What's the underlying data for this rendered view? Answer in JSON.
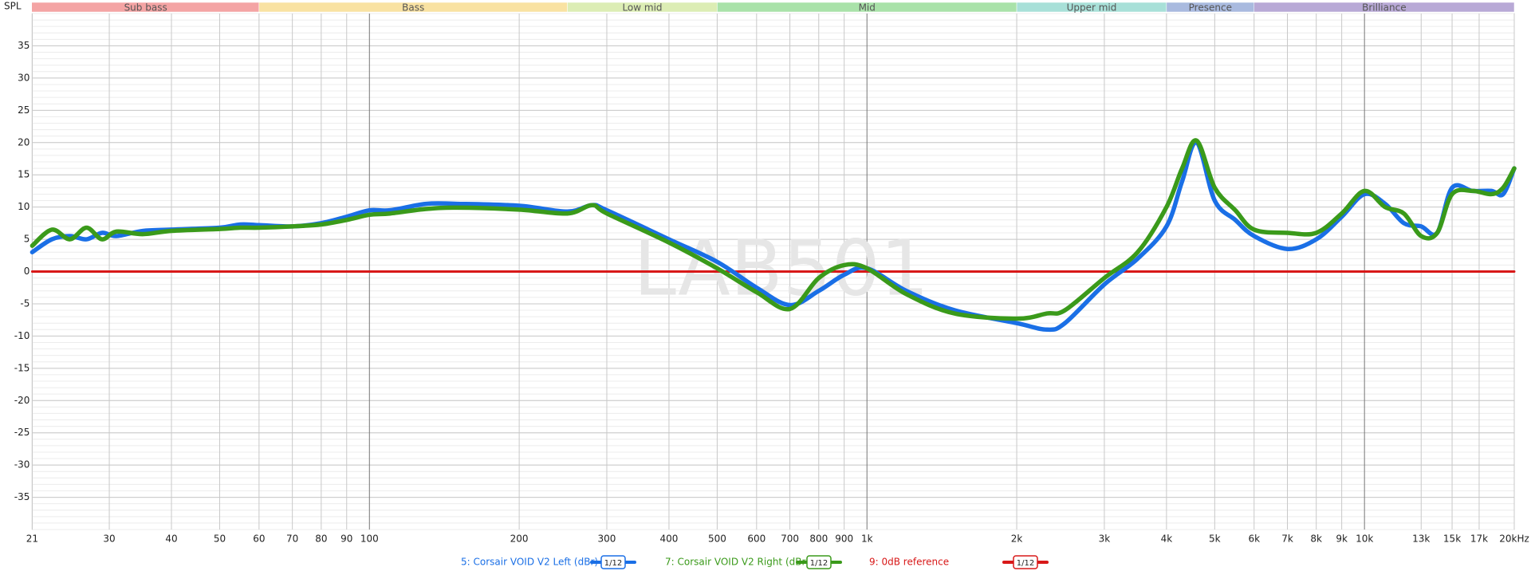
{
  "chart_data": {
    "type": "line",
    "y_axis_label": "SPL",
    "watermark": "LAB501",
    "xscale": "log",
    "xlim": [
      21,
      20000
    ],
    "ylim": [
      -40,
      40
    ],
    "grid": true,
    "xticks": [
      21,
      30,
      40,
      50,
      60,
      70,
      80,
      90,
      100,
      200,
      300,
      400,
      500,
      600,
      700,
      800,
      900,
      {
        "value": 1000,
        "label": "1k"
      },
      {
        "value": 2000,
        "label": "2k"
      },
      {
        "value": 3000,
        "label": "3k"
      },
      {
        "value": 4000,
        "label": "4k"
      },
      {
        "value": 5000,
        "label": "5k"
      },
      {
        "value": 6000,
        "label": "6k"
      },
      {
        "value": 7000,
        "label": "7k"
      },
      {
        "value": 8000,
        "label": "8k"
      },
      {
        "value": 9000,
        "label": "9k"
      },
      {
        "value": 10000,
        "label": "10k"
      },
      {
        "value": 13000,
        "label": "13k"
      },
      {
        "value": 15000,
        "label": "15k"
      },
      {
        "value": 17000,
        "label": "17k"
      },
      {
        "value": 20000,
        "label": "20kHz"
      }
    ],
    "yticks": [
      -35,
      -30,
      -25,
      -20,
      -15,
      -10,
      -5,
      0,
      5,
      10,
      15,
      20,
      25,
      30,
      35
    ],
    "bands": [
      {
        "name": "Sub bass",
        "start": 20,
        "end": 60,
        "color": "#f4a4a4"
      },
      {
        "name": "Bass",
        "start": 60,
        "end": 250,
        "color": "#f9e2a2"
      },
      {
        "name": "Low mid",
        "start": 250,
        "end": 500,
        "color": "#dcedb4"
      },
      {
        "name": "Mid",
        "start": 500,
        "end": 2000,
        "color": "#a9e2a9"
      },
      {
        "name": "Upper mid",
        "start": 2000,
        "end": 4000,
        "color": "#a8e0d8"
      },
      {
        "name": "Presence",
        "start": 4000,
        "end": 6000,
        "color": "#a9badf"
      },
      {
        "name": "Brilliance",
        "start": 6000,
        "end": 20000,
        "color": "#b8a9d6"
      }
    ],
    "x": [
      21,
      23,
      25,
      27,
      29,
      31,
      35,
      40,
      50,
      55,
      60,
      70,
      80,
      90,
      100,
      110,
      130,
      150,
      200,
      250,
      280,
      300,
      400,
      500,
      600,
      700,
      800,
      900,
      1000,
      1200,
      1500,
      2000,
      2300,
      2500,
      3000,
      3500,
      4000,
      4300,
      4600,
      5000,
      5500,
      6000,
      7000,
      8000,
      9000,
      10000,
      11000,
      12000,
      13000,
      14000,
      15000,
      16500,
      18000,
      19000,
      20000
    ],
    "series": [
      {
        "name": "5: Corsair VOID V2 Left (dBr)",
        "smoothing": "1/12",
        "color": "#1a6fe6",
        "values": [
          3,
          5,
          5.5,
          5,
          6,
          5.5,
          6.3,
          6.5,
          6.8,
          7.3,
          7.2,
          7,
          7.5,
          8.5,
          9.5,
          9.5,
          10.5,
          10.5,
          10.2,
          9.3,
          10.3,
          9.5,
          5,
          1.5,
          -2.5,
          -5.2,
          -3,
          -0.5,
          0.5,
          -3,
          -6,
          -8,
          -9,
          -8,
          -2,
          2,
          7,
          14,
          20,
          11,
          8,
          5.5,
          3.5,
          5,
          8.5,
          12,
          10.5,
          7.5,
          7,
          6,
          13,
          12.5,
          12.5,
          12,
          16
        ]
      },
      {
        "name": "7: Corsair VOID V2 Right (dBr)",
        "smoothing": "1/12",
        "color": "#3a9a1a",
        "values": [
          4,
          6.5,
          5,
          6.8,
          5,
          6.2,
          5.8,
          6.3,
          6.6,
          6.8,
          6.8,
          7,
          7.3,
          8,
          8.8,
          9,
          9.7,
          9.9,
          9.6,
          9,
          10.3,
          9,
          4.5,
          0.5,
          -3.2,
          -5.8,
          -1,
          1,
          0.5,
          -3.5,
          -6.5,
          -7.3,
          -6.5,
          -6,
          -1,
          3,
          10,
          16,
          20.3,
          13,
          9.5,
          6.5,
          6,
          6,
          9,
          12.5,
          10,
          9,
          5.5,
          6,
          12,
          12.5,
          12,
          13,
          16
        ]
      },
      {
        "name": "9: 0dB reference",
        "smoothing": "1/12",
        "color": "#d81818",
        "x": [
          21,
          20000
        ],
        "values": [
          0,
          0
        ]
      }
    ]
  }
}
